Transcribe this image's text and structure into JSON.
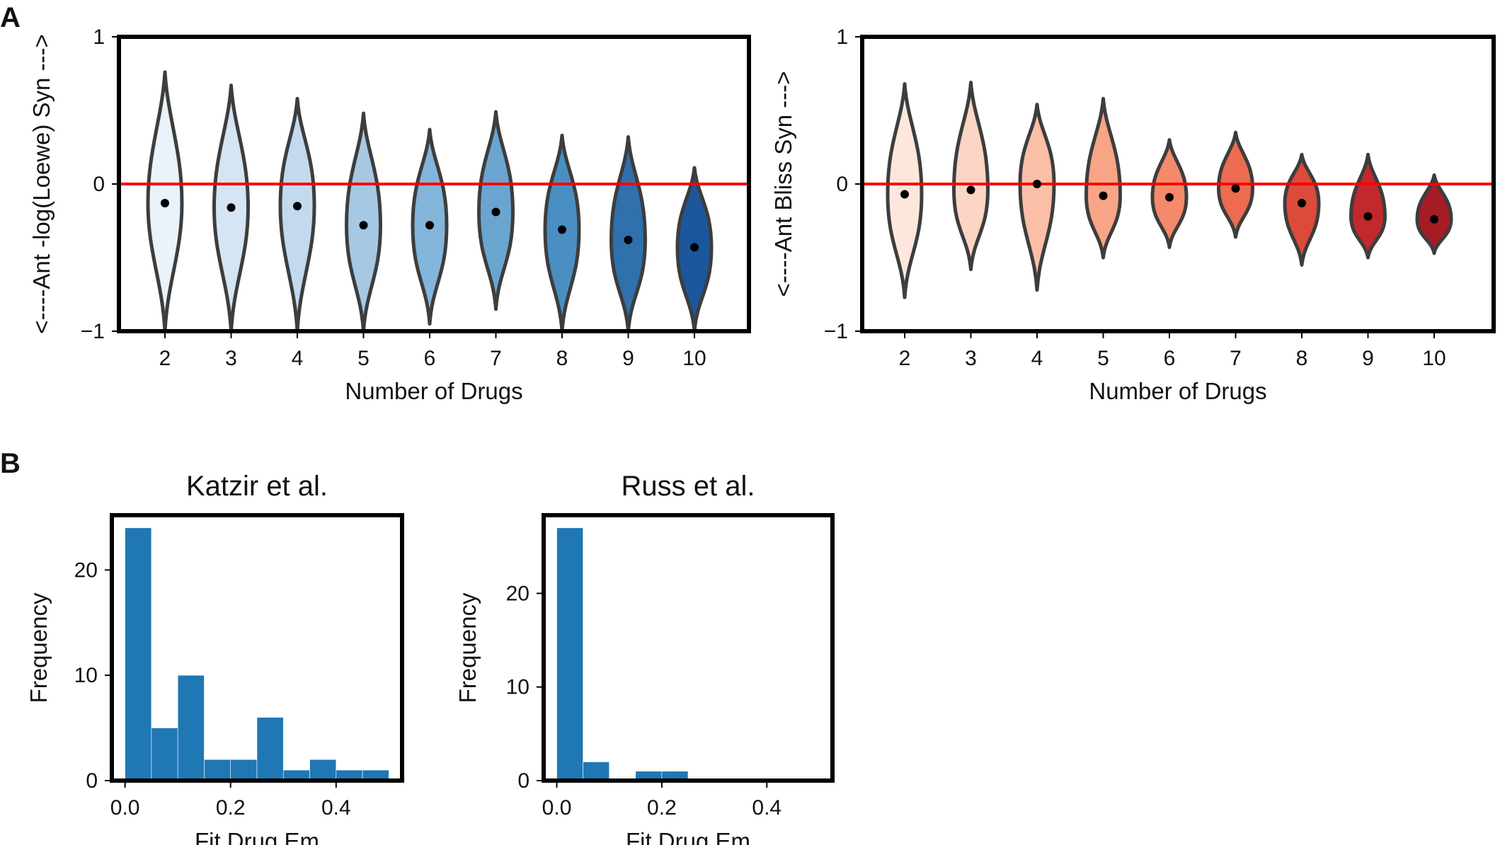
{
  "panel_labels": [
    "A",
    "B"
  ],
  "chart_data": [
    {
      "type": "violin",
      "panel": "A",
      "xlabel": "Number of Drugs",
      "ylabel": "<----Ant   -log(Loewe)   Syn --->",
      "categories": [
        "2",
        "3",
        "4",
        "5",
        "6",
        "7",
        "8",
        "9",
        "10"
      ],
      "medians": [
        -0.13,
        -0.16,
        -0.15,
        -0.28,
        -0.28,
        -0.19,
        -0.31,
        -0.38,
        -0.43
      ],
      "ranges": [
        [
          -1.0,
          0.76
        ],
        [
          -1.0,
          0.67
        ],
        [
          -1.0,
          0.58
        ],
        [
          -1.0,
          0.48
        ],
        [
          -0.95,
          0.37
        ],
        [
          -0.85,
          0.49
        ],
        [
          -1.0,
          0.33
        ],
        [
          -1.0,
          0.32
        ],
        [
          -1.0,
          0.11
        ]
      ],
      "ylim": [
        -1,
        1
      ],
      "yticks": [
        "1",
        "0",
        "−1"
      ],
      "reference_line": 0,
      "colors": [
        "#eaf2fa",
        "#d6e5f3",
        "#c3d9ee",
        "#a6c8e3",
        "#84b5da",
        "#6aa5d0",
        "#4a8fc2",
        "#2f70ad",
        "#1c579c"
      ],
      "reference_color": "#ff0000"
    },
    {
      "type": "violin",
      "panel": "A",
      "xlabel": "Number of Drugs",
      "ylabel": "<----Ant   Bliss   Syn --->",
      "categories": [
        "2",
        "3",
        "4",
        "5",
        "6",
        "7",
        "8",
        "9",
        "10"
      ],
      "medians": [
        -0.07,
        -0.04,
        0.0,
        -0.08,
        -0.09,
        -0.03,
        -0.13,
        -0.22,
        -0.24
      ],
      "ranges": [
        [
          -0.77,
          0.68
        ],
        [
          -0.58,
          0.69
        ],
        [
          -0.72,
          0.54
        ],
        [
          -0.5,
          0.58
        ],
        [
          -0.43,
          0.3
        ],
        [
          -0.36,
          0.35
        ],
        [
          -0.55,
          0.2
        ],
        [
          -0.5,
          0.2
        ],
        [
          -0.47,
          0.06
        ]
      ],
      "ylim": [
        -1,
        1
      ],
      "yticks": [
        "1",
        "0",
        "−1"
      ],
      "reference_line": 0,
      "colors": [
        "#fde7dd",
        "#fcd5c4",
        "#fbbfa7",
        "#f8a487",
        "#f48a6b",
        "#ec6b51",
        "#dc4a3b",
        "#c1292e",
        "#a51c25"
      ],
      "reference_color": "#ff0000"
    },
    {
      "type": "histogram",
      "panel": "B",
      "title": "Katzir et al.",
      "xlabel": "Fit Drug Em",
      "ylabel": "Frequency",
      "bin_edges": [
        0.0,
        0.05,
        0.1,
        0.15,
        0.2,
        0.25,
        0.3,
        0.35,
        0.4,
        0.45,
        0.5
      ],
      "counts": [
        24,
        5,
        10,
        2,
        2,
        6,
        1,
        2,
        1,
        1
      ],
      "xlim": [
        -0.025,
        0.525
      ],
      "ylim": [
        0,
        25.2
      ],
      "xticks": [
        "0.0",
        "0.2",
        "0.4"
      ],
      "yticks": [
        "0",
        "10",
        "20"
      ],
      "bar_color": "#1f77b4"
    },
    {
      "type": "histogram",
      "panel": "B",
      "title": "Russ et al.",
      "xlabel": "Fit Drug Em",
      "ylabel": "Frequency",
      "bin_edges": [
        0.0,
        0.05,
        0.1,
        0.15,
        0.2,
        0.25
      ],
      "counts": [
        27,
        2,
        0,
        1,
        1
      ],
      "xlim": [
        -0.025,
        0.525
      ],
      "ylim": [
        0,
        28.35
      ],
      "xticks": [
        "0.0",
        "0.2",
        "0.4"
      ],
      "yticks": [
        "0",
        "10",
        "20"
      ],
      "bar_color": "#1f77b4"
    }
  ]
}
